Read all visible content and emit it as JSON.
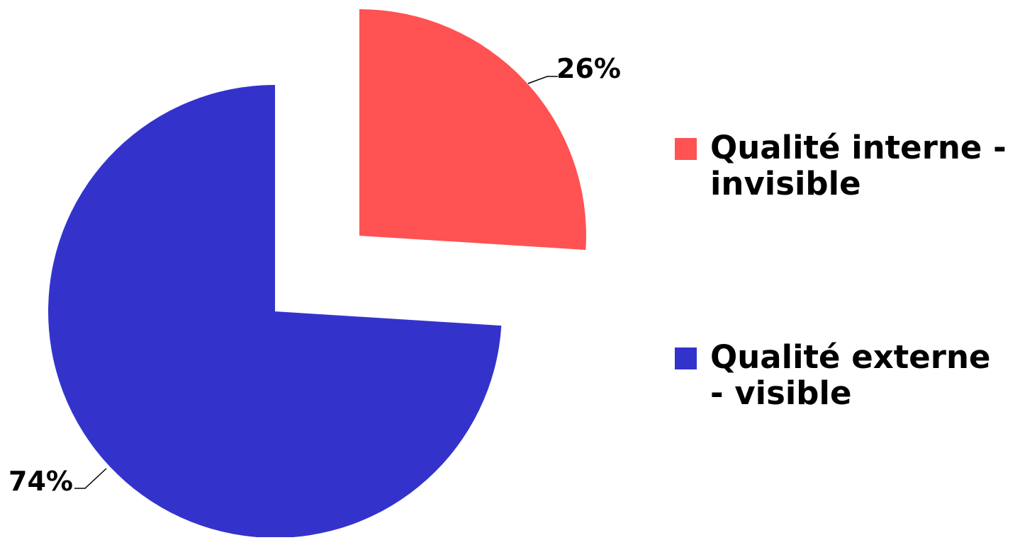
{
  "chart_data": {
    "type": "pie",
    "title": "",
    "start_angle_deg": 0,
    "direction": "clockwise",
    "exploded": true,
    "slices": [
      {
        "name": "Qualité interne - invisible",
        "value": 26,
        "label": "26%",
        "color": "#FF5252"
      },
      {
        "name": "Qualité externe - visible",
        "value": 74,
        "label": "74%",
        "color": "#3333CC"
      }
    ],
    "legend": {
      "position": "right",
      "entries": [
        "Qualité interne - invisible",
        "Qualité externe - visible"
      ]
    }
  }
}
